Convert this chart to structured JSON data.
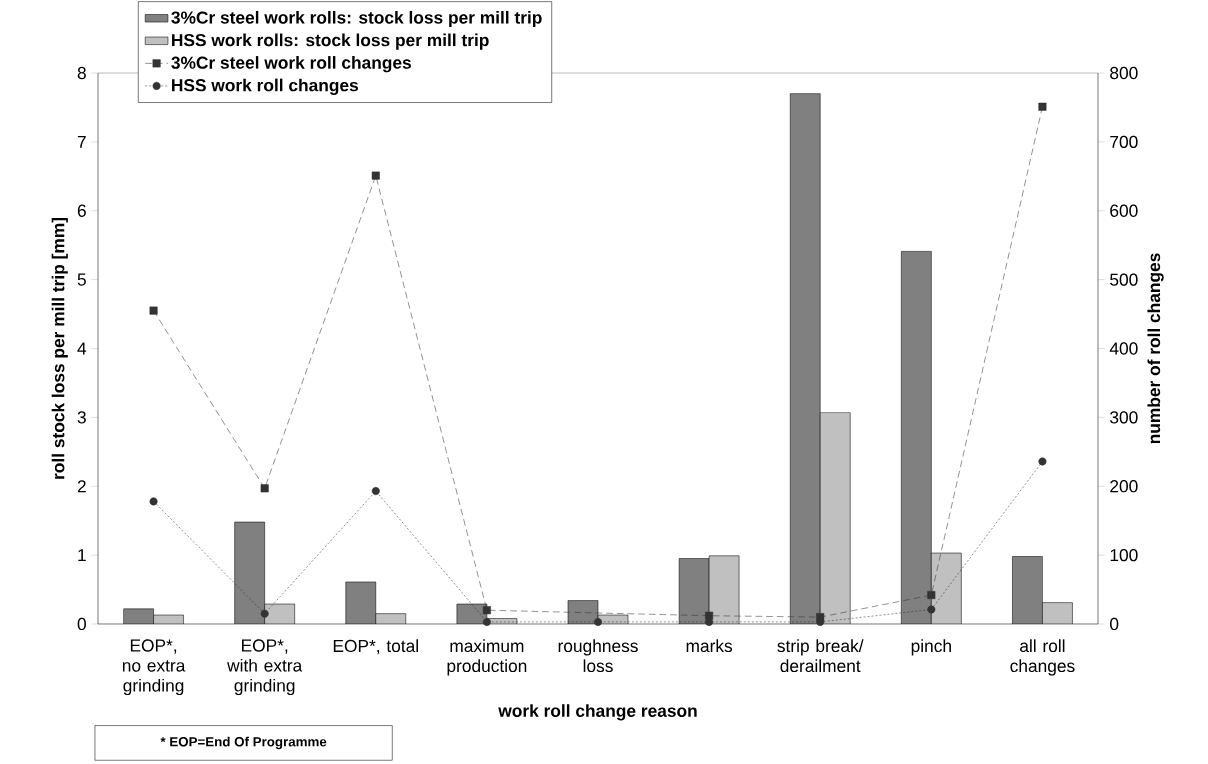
{
  "chart_data": {
    "type": "bar",
    "xlabel": "work roll change reason",
    "ylabel": "roll stock loss per mill trip [mm]",
    "y2label": "number of roll changes",
    "categories": [
      "EOP*, no extra grinding",
      "EOP*, with extra grinding",
      "EOP*, total",
      "maximum production",
      "roughness loss",
      "marks",
      "strip break/ derailment",
      "pinch",
      "all roll changes"
    ],
    "series": [
      {
        "name": "3%Cr steel work rolls: stock loss per mill trip",
        "color": "#808080",
        "values": [
          0.22,
          1.48,
          0.61,
          0.29,
          0.34,
          0.95,
          7.7,
          5.41,
          0.98
        ]
      },
      {
        "name": "HSS work rolls: stock loss per mill trip",
        "color": "#c0c0c0",
        "values": [
          0.13,
          0.29,
          0.15,
          0.08,
          0.13,
          0.99,
          3.07,
          1.03,
          0.31
        ]
      },
      {
        "name": "3%Cr steel work roll changes",
        "type": "line",
        "axis": "y2",
        "color": "#333333",
        "marker": "square",
        "line_style": "dashed",
        "values": [
          455,
          197,
          651,
          20,
          null,
          12,
          10,
          42,
          751
        ]
      },
      {
        "name": "HSS work roll changes",
        "type": "line",
        "axis": "y2",
        "color": "#333333",
        "marker": "circle",
        "line_style": "dotted",
        "values": [
          178,
          15,
          193,
          3,
          3,
          3,
          3,
          21,
          236
        ]
      }
    ],
    "ylim": [
      0,
      8
    ],
    "yticks": [
      0,
      1,
      2,
      3,
      4,
      5,
      6,
      7,
      8
    ],
    "y2lim": [
      0,
      800
    ],
    "y2ticks": [
      0,
      100,
      200,
      300,
      400,
      500,
      600,
      700,
      800
    ],
    "legend": "top left",
    "annotations": [
      "* EOP=End Of Programme"
    ]
  }
}
